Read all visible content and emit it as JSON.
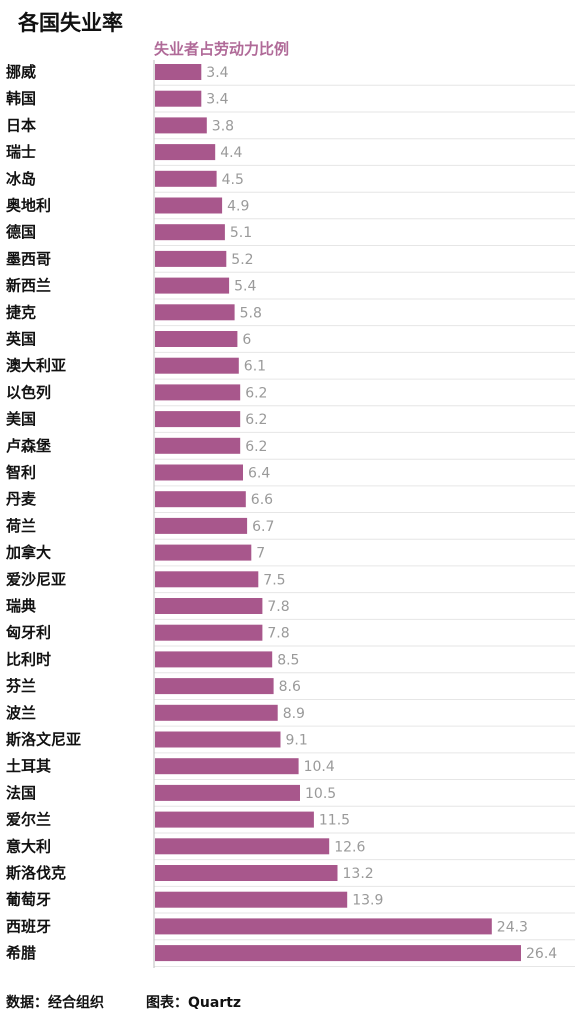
{
  "chart_data": {
    "type": "bar",
    "orientation": "horizontal",
    "title": "各国失业率",
    "subtitle": "失业者占劳动力比例",
    "categories": [
      "挪威",
      "韩国",
      "日本",
      "瑞士",
      "冰岛",
      "奥地利",
      "德国",
      "墨西哥",
      "新西兰",
      "捷克",
      "英国",
      "澳大利亚",
      "以色列",
      "美国",
      "卢森堡",
      "智利",
      "丹麦",
      "荷兰",
      "加拿大",
      "爱沙尼亚",
      "瑞典",
      "匈牙利",
      "比利时",
      "芬兰",
      "波兰",
      "斯洛文尼亚",
      "土耳其",
      "法国",
      "爱尔兰",
      "意大利",
      "斯洛伐克",
      "葡萄牙",
      "西班牙",
      "希腊"
    ],
    "values": [
      3.4,
      3.4,
      3.8,
      4.4,
      4.5,
      4.9,
      5.1,
      5.2,
      5.4,
      5.8,
      6,
      6.1,
      6.2,
      6.2,
      6.2,
      6.4,
      6.6,
      6.7,
      7,
      7.5,
      7.8,
      7.8,
      8.5,
      8.6,
      8.9,
      9.1,
      10.4,
      10.5,
      11.5,
      12.6,
      13.2,
      13.9,
      24.3,
      26.4
    ],
    "value_labels": [
      "3.4",
      "3.4",
      "3.8",
      "4.4",
      "4.5",
      "4.9",
      "5.1",
      "5.2",
      "5.4",
      "5.8",
      "6",
      "6.1",
      "6.2",
      "6.2",
      "6.2",
      "6.4",
      "6.6",
      "6.7",
      "7",
      "7.5",
      "7.8",
      "7.8",
      "8.5",
      "8.6",
      "8.9",
      "9.1",
      "10.4",
      "10.5",
      "11.5",
      "12.6",
      "13.2",
      "13.9",
      "24.3",
      "26.4"
    ],
    "xlim": [
      0,
      26.4
    ],
    "bar_color": "#a8578c",
    "grid": true,
    "legend": "none"
  },
  "footer": {
    "source": "数据：经合组织",
    "chart_credit": "图表：Quartz"
  },
  "colors": {
    "bar": "#a8578c",
    "subtitle": "#b06a98",
    "value_label": "#9a9a9a",
    "text": "#111111"
  }
}
